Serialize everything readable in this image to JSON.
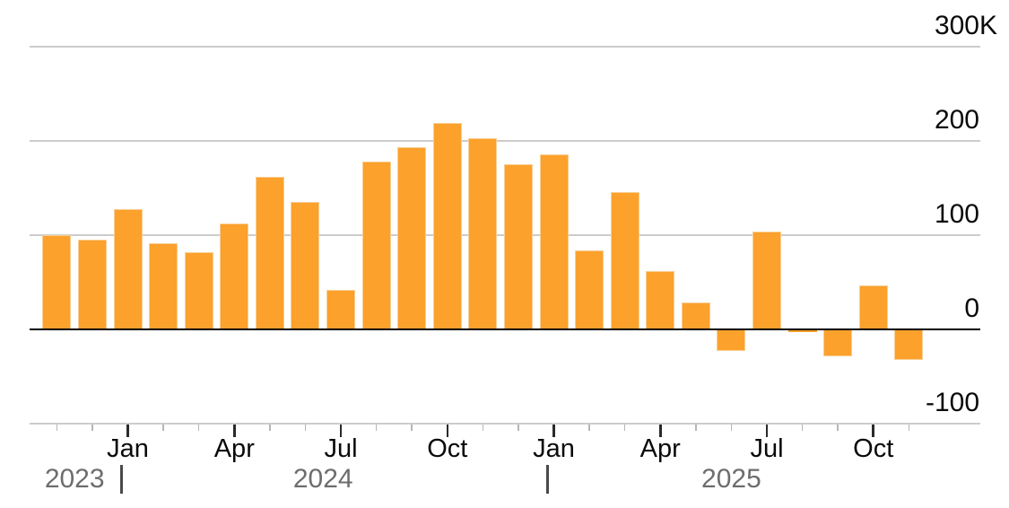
{
  "chart": {
    "background": "#ffffff",
    "bar_color": "#FBA12C",
    "bar_edge_color": "#F9CE93",
    "gridline_color": "#cccccc",
    "zero_line_color": "#000000",
    "axis_text_color": "#0a0a0a",
    "year_text_color": "#6d6d6d",
    "year_divider_color": "#4a4a4a",
    "minor_tick_color": "#b5b5b5",
    "major_tick_color": "#2a2a2a"
  },
  "chart_data": {
    "type": "bar",
    "title": "",
    "subtitle": "",
    "legend": "none",
    "grid": "horizontal",
    "unit": "K",
    "ylim": [
      -100,
      300
    ],
    "y_ticks": [
      {
        "value": 300,
        "label": "300",
        "suffix": "K"
      },
      {
        "value": 200,
        "label": "200",
        "suffix": ""
      },
      {
        "value": 100,
        "label": "100",
        "suffix": ""
      },
      {
        "value": 0,
        "label": "0",
        "suffix": ""
      },
      {
        "value": -100,
        "label": "-100",
        "suffix": ""
      }
    ],
    "gridline_values": [
      300,
      200,
      100,
      -100
    ],
    "x_major_tick_months": [
      "Jan",
      "Apr",
      "Jul",
      "Oct"
    ],
    "years": [
      "2023",
      "2024",
      "2025"
    ],
    "categories": [
      "Nov 2023",
      "Dec 2023",
      "Jan 2024",
      "Feb 2024",
      "Mar 2024",
      "Apr 2024",
      "May 2024",
      "Jun 2024",
      "Jul 2024",
      "Aug 2024",
      "Sep 2024",
      "Oct 2024",
      "Nov 2024",
      "Dec 2024",
      "Jan 2025",
      "Feb 2025",
      "Mar 2025",
      "Apr 2025",
      "May 2025",
      "Jun 2025",
      "Jul 2025",
      "Aug 2025",
      "Sep 2025",
      "Oct 2025",
      "Nov 2025"
    ],
    "values": [
      100,
      95,
      128,
      91,
      82,
      112,
      162,
      135,
      42,
      178,
      193,
      219,
      203,
      175,
      186,
      84,
      146,
      62,
      29,
      -23,
      104,
      -3,
      -29,
      47,
      -32
    ]
  }
}
